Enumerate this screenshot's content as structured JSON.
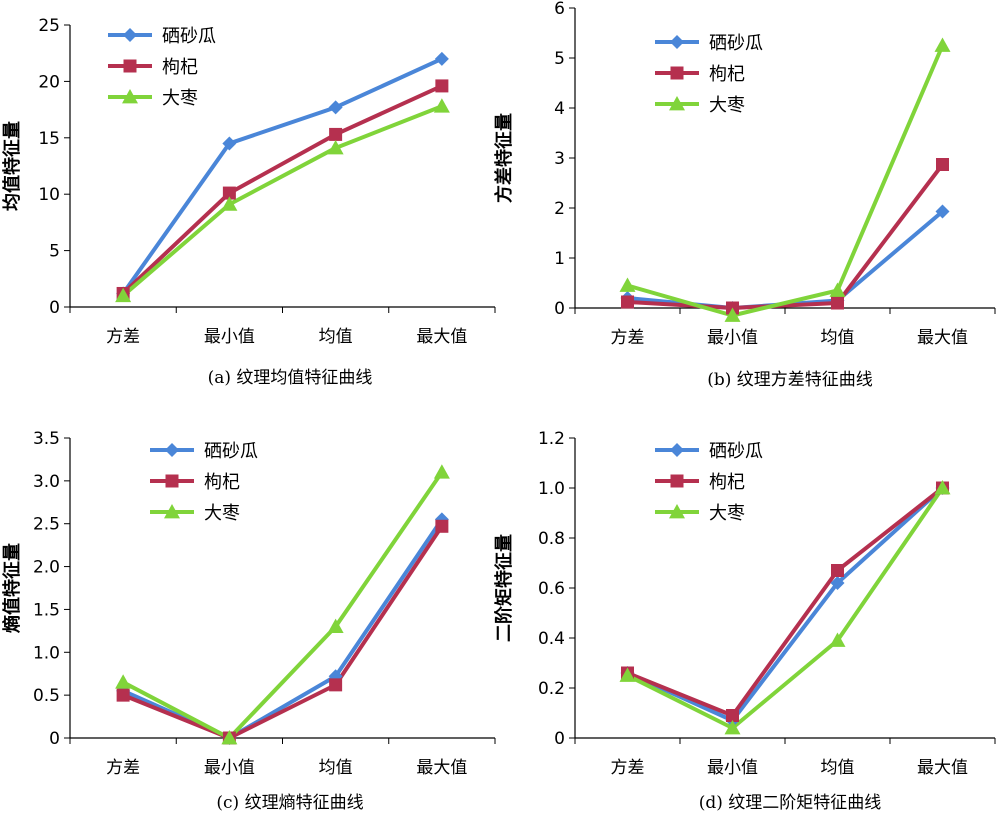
{
  "chart_data": [
    {
      "type": "line",
      "caption": "(a) 纹理均值特征曲线",
      "ylabel": "均值特征量",
      "categories": [
        "方差",
        "最小值",
        "均值",
        "最大值"
      ],
      "ylim": [
        0,
        25
      ],
      "yticks": [
        "0",
        "5",
        "10",
        "15",
        "20",
        "25"
      ],
      "legend_position": "top-left",
      "series": [
        {
          "name": "硒砂瓜",
          "marker": "diamond",
          "color": "#4a86d8",
          "values": [
            1.2,
            14.5,
            17.7,
            22.0
          ]
        },
        {
          "name": "枸杞",
          "marker": "square",
          "color": "#b5304f",
          "values": [
            1.2,
            10.1,
            15.3,
            19.6
          ]
        },
        {
          "name": "大枣",
          "marker": "triangle",
          "color": "#80d43a",
          "values": [
            1.0,
            9.1,
            14.1,
            17.8
          ]
        }
      ]
    },
    {
      "type": "line",
      "caption": "(b) 纹理方差特征曲线",
      "ylabel": "方差特征量",
      "categories": [
        "方差",
        "最小值",
        "均值",
        "最大值"
      ],
      "ylim": [
        0,
        6
      ],
      "yticks": [
        "0",
        "1",
        "2",
        "3",
        "4",
        "5",
        "6"
      ],
      "legend_position": "top-left",
      "series": [
        {
          "name": "硒砂瓜",
          "marker": "diamond",
          "color": "#4a86d8",
          "values": [
            0.2,
            0.0,
            0.15,
            1.93
          ]
        },
        {
          "name": "枸杞",
          "marker": "square",
          "color": "#b5304f",
          "values": [
            0.12,
            0.0,
            0.1,
            2.87
          ]
        },
        {
          "name": "大枣",
          "marker": "triangle",
          "color": "#80d43a",
          "values": [
            0.45,
            -0.15,
            0.35,
            5.25
          ]
        }
      ]
    },
    {
      "type": "line",
      "caption": "(c) 纹理熵特征曲线",
      "ylabel": "熵值特征量",
      "categories": [
        "方差",
        "最小值",
        "均值",
        "最大值"
      ],
      "ylim": [
        0,
        3.5
      ],
      "yticks": [
        "0",
        "0.5",
        "1.0",
        "1.5",
        "2.0",
        "2.5",
        "3.0",
        "3.5"
      ],
      "legend_position": "top-left",
      "series": [
        {
          "name": "硒砂瓜",
          "marker": "diamond",
          "color": "#4a86d8",
          "values": [
            0.55,
            0.0,
            0.72,
            2.55
          ]
        },
        {
          "name": "枸杞",
          "marker": "square",
          "color": "#b5304f",
          "values": [
            0.5,
            0.0,
            0.62,
            2.47
          ]
        },
        {
          "name": "大枣",
          "marker": "triangle",
          "color": "#80d43a",
          "values": [
            0.65,
            0.0,
            1.3,
            3.1
          ]
        }
      ]
    },
    {
      "type": "line",
      "caption": "(d) 纹理二阶矩特征曲线",
      "ylabel": "二阶矩特征量",
      "categories": [
        "方差",
        "最小值",
        "均值",
        "最大值"
      ],
      "ylim": [
        0,
        1.2
      ],
      "yticks": [
        "0",
        "0.2",
        "0.4",
        "0.6",
        "0.8",
        "1.0",
        "1.2"
      ],
      "legend_position": "top-left",
      "series": [
        {
          "name": "硒砂瓜",
          "marker": "diamond",
          "color": "#4a86d8",
          "values": [
            0.26,
            0.07,
            0.62,
            1.0
          ]
        },
        {
          "name": "枸杞",
          "marker": "square",
          "color": "#b5304f",
          "values": [
            0.26,
            0.09,
            0.67,
            1.0
          ]
        },
        {
          "name": "大枣",
          "marker": "triangle",
          "color": "#80d43a",
          "values": [
            0.25,
            0.04,
            0.39,
            1.0
          ]
        }
      ]
    }
  ]
}
